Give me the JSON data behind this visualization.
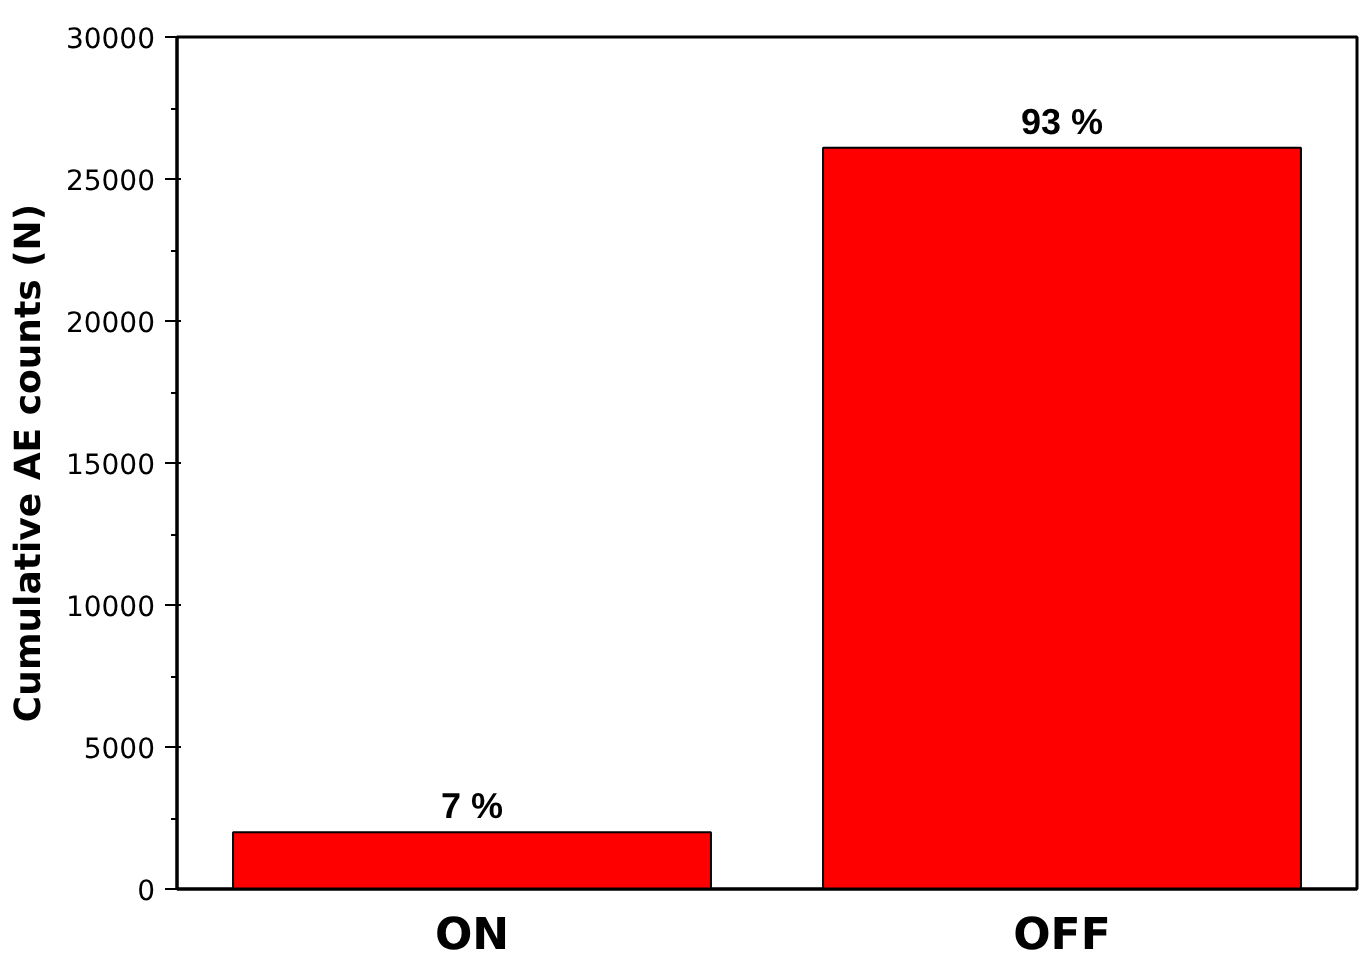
{
  "chart_data": {
    "type": "bar",
    "ylabel": "Cumulative AE counts (N)",
    "categories": [
      "ON",
      "OFF"
    ],
    "values": [
      2000,
      26100
    ],
    "annotations": [
      {
        "text": "7 %",
        "x": "ON",
        "y": 2000
      },
      {
        "text": "93 %",
        "x": "OFF",
        "y": 26100
      }
    ],
    "color": "#ff0000",
    "ylim": [
      0,
      30000
    ],
    "yticks": [
      0,
      5000,
      10000,
      15000,
      20000,
      25000,
      30000
    ],
    "grid": false
  }
}
